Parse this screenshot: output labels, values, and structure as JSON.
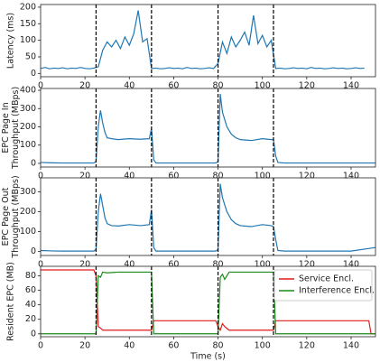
{
  "chart_data": [
    {
      "type": "line",
      "ylabel": [
        "Latency (ms)"
      ],
      "x": [
        0,
        2,
        4,
        6,
        8,
        10,
        12,
        14,
        16,
        18,
        20,
        22,
        24,
        26,
        28,
        30,
        32,
        34,
        36,
        38,
        40,
        42,
        44,
        46,
        48,
        50,
        52,
        54,
        56,
        58,
        60,
        62,
        64,
        66,
        68,
        70,
        72,
        74,
        76,
        78,
        80,
        82,
        84,
        86,
        88,
        90,
        92,
        94,
        96,
        98,
        100,
        102,
        104,
        106,
        108,
        110,
        112,
        114,
        116,
        118,
        120,
        122,
        124,
        126,
        128,
        130,
        132,
        134,
        136,
        138,
        140,
        142,
        144,
        146
      ],
      "series": [
        {
          "color": "#1f77b4",
          "values": [
            15,
            18,
            14,
            16,
            15,
            17,
            14,
            16,
            15,
            18,
            15,
            14,
            16,
            20,
            70,
            95,
            80,
            100,
            75,
            110,
            85,
            120,
            190,
            95,
            105,
            15,
            16,
            14,
            15,
            17,
            15,
            16,
            14,
            18,
            15,
            16,
            14,
            15,
            17,
            15,
            30,
            95,
            60,
            110,
            80,
            100,
            125,
            85,
            175,
            90,
            115,
            80,
            100,
            15,
            16,
            14,
            15,
            17,
            15,
            16,
            14,
            18,
            15,
            16,
            14,
            15,
            17,
            15,
            16,
            14,
            15,
            17,
            15,
            16
          ]
        }
      ],
      "xlim": [
        0,
        151
      ],
      "xticks": [
        0,
        20,
        40,
        60,
        80,
        100,
        120,
        140
      ],
      "ylim": [
        -10,
        208
      ],
      "yticks": [
        0,
        50,
        100,
        150,
        200
      ],
      "vlines": [
        25,
        50,
        80,
        105
      ]
    },
    {
      "type": "line",
      "ylabel": [
        "EPC Page In",
        "Throughput (MBps)"
      ],
      "x": [
        0,
        5,
        10,
        15,
        20,
        24,
        25,
        26,
        27,
        28,
        29,
        30,
        32,
        35,
        40,
        45,
        49,
        50,
        51,
        52,
        55,
        60,
        70,
        79,
        80,
        81,
        82,
        84,
        86,
        88,
        90,
        95,
        100,
        104,
        105,
        106,
        107,
        110,
        120,
        130,
        140,
        151
      ],
      "series": [
        {
          "color": "#1f77b4",
          "values": [
            5,
            3,
            2,
            2,
            2,
            2,
            10,
            200,
            290,
            220,
            170,
            140,
            135,
            130,
            135,
            132,
            135,
            190,
            20,
            2,
            2,
            2,
            2,
            2,
            10,
            380,
            280,
            200,
            160,
            140,
            130,
            125,
            135,
            130,
            130,
            40,
            5,
            2,
            2,
            2,
            2,
            2
          ]
        }
      ],
      "xlim": [
        0,
        151
      ],
      "xticks": [
        0,
        20,
        40,
        60,
        80,
        100,
        120,
        140
      ],
      "ylim": [
        -20,
        410
      ],
      "yticks": [
        0,
        100,
        200,
        300,
        400
      ],
      "vlines": [
        25,
        50,
        80,
        105
      ]
    },
    {
      "type": "line",
      "ylabel": [
        "EPC Page Out",
        "Throughput (MBps)"
      ],
      "x": [
        0,
        5,
        10,
        15,
        20,
        24,
        25,
        26,
        27,
        28,
        29,
        30,
        32,
        35,
        40,
        45,
        49,
        50,
        51,
        52,
        55,
        60,
        70,
        79,
        80,
        81,
        82,
        84,
        86,
        88,
        90,
        95,
        100,
        104,
        105,
        106,
        107,
        110,
        120,
        130,
        140,
        151
      ],
      "series": [
        {
          "color": "#1f77b4",
          "values": [
            5,
            3,
            2,
            2,
            2,
            2,
            10,
            200,
            290,
            230,
            170,
            140,
            130,
            128,
            135,
            130,
            135,
            210,
            20,
            2,
            2,
            2,
            2,
            2,
            10,
            340,
            270,
            200,
            160,
            140,
            130,
            125,
            135,
            130,
            125,
            60,
            5,
            2,
            2,
            2,
            2,
            20
          ]
        }
      ],
      "xlim": [
        0,
        151
      ],
      "xticks": [
        0,
        20,
        40,
        60,
        80,
        100,
        120,
        140
      ],
      "ylim": [
        -20,
        370
      ],
      "yticks": [
        0,
        100,
        200,
        300
      ],
      "vlines": [
        25,
        50,
        80,
        105
      ]
    },
    {
      "type": "line",
      "ylabel": [
        "Resident EPC (MB)"
      ],
      "xlabel": "Time (s)",
      "legend": "upper right",
      "x": [
        0,
        24,
        25,
        26,
        27,
        28,
        30,
        35,
        45,
        49,
        50,
        51,
        55,
        70,
        79,
        80,
        81,
        82,
        83,
        85,
        90,
        100,
        104,
        105,
        106,
        110,
        130,
        148,
        149,
        151
      ],
      "series": [
        {
          "name": "Service Encl.",
          "color": "#e41a1c",
          "values": [
            88,
            88,
            80,
            10,
            8,
            5,
            5,
            5,
            5,
            5,
            5,
            18,
            18,
            18,
            18,
            10,
            5,
            14,
            10,
            5,
            5,
            5,
            5,
            5,
            18,
            18,
            18,
            18,
            0,
            0
          ]
        },
        {
          "name": "Interference Encl.",
          "color": "#1a8a1a",
          "values": [
            0,
            0,
            0,
            80,
            78,
            85,
            84,
            85,
            85,
            85,
            85,
            0,
            0,
            0,
            0,
            0,
            78,
            82,
            75,
            85,
            85,
            85,
            85,
            85,
            0,
            0,
            0,
            0,
            0,
            0
          ]
        }
      ],
      "xlim": [
        0,
        151
      ],
      "xticks": [
        0,
        20,
        40,
        60,
        80,
        100,
        120,
        140
      ],
      "ylim": [
        -4,
        93
      ],
      "yticks": [
        0,
        20,
        40,
        60,
        80
      ],
      "vlines": [
        25,
        50,
        80,
        105
      ]
    }
  ]
}
